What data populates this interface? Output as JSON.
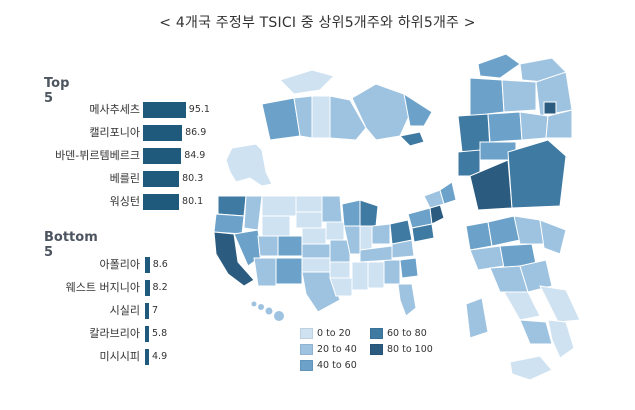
{
  "title": "< 4개국 주정부 TSICI 중 상위5개주와 하위5개주 >",
  "top": {
    "label": "Top 5",
    "items": [
      {
        "name": "메사추세츠",
        "value": 95.1
      },
      {
        "name": "캘리포니아",
        "value": 86.9
      },
      {
        "name": "바덴-뷔르템베르크",
        "value": 84.9
      },
      {
        "name": "베를린",
        "value": 80.3
      },
      {
        "name": "워싱턴",
        "value": 80.1
      }
    ]
  },
  "bottom": {
    "label": "Bottom 5",
    "items": [
      {
        "name": "아폴리아",
        "value": 8.6
      },
      {
        "name": "웨스트 버지니아",
        "value": 8.2
      },
      {
        "name": "시실리",
        "value": 7.0
      },
      {
        "name": "칼라브리아",
        "value": 5.8
      },
      {
        "name": "미시시피",
        "value": 4.9
      }
    ]
  },
  "legend": [
    {
      "label": "0 to 20",
      "color": "#cfe2f1"
    },
    {
      "label": "60 to 80",
      "color": "#3f7aa3"
    },
    {
      "label": "20 to 40",
      "color": "#9ec3e1"
    },
    {
      "label": "80 to 100",
      "color": "#2b5c80"
    },
    {
      "label": "40 to 60",
      "color": "#6ca2ca"
    }
  ],
  "colors": {
    "bar": "#1f5a7d",
    "map_light": "#cfe2f1",
    "map_mid": "#9ec3e1",
    "map_dark": "#6ca2ca",
    "map_darker": "#3f7aa3",
    "map_darkest": "#2b5c80"
  }
}
